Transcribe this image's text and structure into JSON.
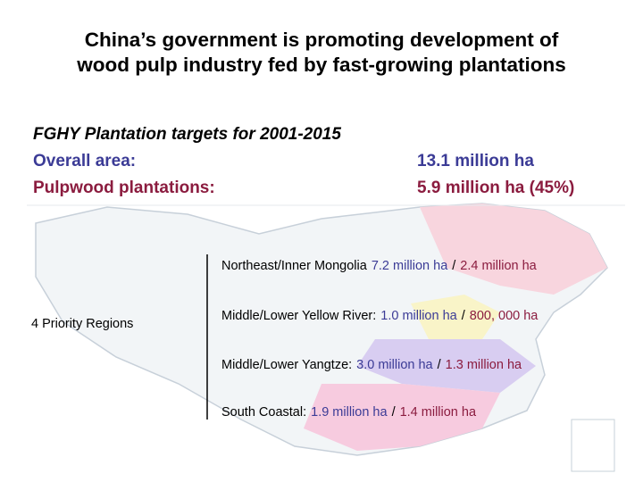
{
  "title_lines": [
    "China’s government is promoting development of",
    "wood pulp industry fed by fast-growing plantations"
  ],
  "targets": {
    "heading": "FGHY Plantation targets for 2001-2015",
    "rows": [
      {
        "label": "Overall area:",
        "value": "13.1 million ha"
      },
      {
        "label": "Pulpwood plantations:",
        "value": "5.9 million ha (45%)"
      }
    ]
  },
  "regions_label": "4 Priority Regions",
  "separator": "/",
  "regions": [
    {
      "name": "Northeast/Inner Mongolia",
      "total": "7.2 million ha",
      "pulpwood": "2.4 million ha"
    },
    {
      "name": "Middle/Lower Yellow River:",
      "total": "1.0 million ha",
      "pulpwood": "800, 000 ha"
    },
    {
      "name": "Middle/Lower Yangtze:",
      "total": "3.0 million ha",
      "pulpwood": "1.3 million ha"
    },
    {
      "name": "South Coastal:",
      "total": "1.9 million ha",
      "pulpwood": "1.4 million ha"
    }
  ]
}
